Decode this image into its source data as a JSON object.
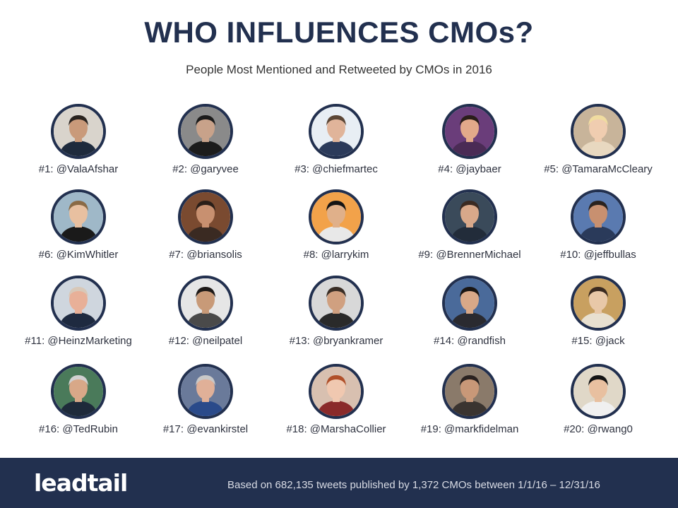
{
  "header": {
    "title": "WHO INFLUENCES CMOs?",
    "subtitle": "People Most Mentioned and Retweeted by CMOs in 2016"
  },
  "influencers": [
    {
      "label": "#1: @ValaAfshar",
      "bg": "#d9d4cc",
      "skin": "#c99a7a",
      "hair": "#2a2420",
      "shirt": "#1e2a3c"
    },
    {
      "label": "#2: @garyvee",
      "bg": "#8a8a8a",
      "skin": "#c8a28a",
      "hair": "#1b1b1b",
      "shirt": "#1c1c1c"
    },
    {
      "label": "#3: @chiefmartec",
      "bg": "#e8eef4",
      "skin": "#e0b49a",
      "hair": "#5b4636",
      "shirt": "#2b3a5a"
    },
    {
      "label": "#4: @jaybaer",
      "bg": "#6a3d7a",
      "skin": "#e2a98a",
      "hair": "#2a1e1a",
      "shirt": "#4a2b55"
    },
    {
      "label": "#5: @TamaraMcCleary",
      "bg": "#c8b49a",
      "skin": "#f0cdb0",
      "hair": "#f0dca0",
      "shirt": "#e8d8c0"
    },
    {
      "label": "#6: @KimWhitler",
      "bg": "#9fb8c8",
      "skin": "#e8c0a0",
      "hair": "#8a6a45",
      "shirt": "#1a1a1a"
    },
    {
      "label": "#7: @briansolis",
      "bg": "#7a4a30",
      "skin": "#c89070",
      "hair": "#2a1e18",
      "shirt": "#3a2a22"
    },
    {
      "label": "#8: @larrykim",
      "bg": "#f2a24a",
      "skin": "#e0b08a",
      "hair": "#141414",
      "shirt": "#e8e8e8"
    },
    {
      "label": "#9: @BrennerMichael",
      "bg": "#3a4a5a",
      "skin": "#d8a88a",
      "hair": "#3a2a22",
      "shirt": "#222c3a"
    },
    {
      "label": "#10: @jeffbullas",
      "bg": "#5a7ab0",
      "skin": "#c89070",
      "hair": "#2a221e",
      "shirt": "#2a3a5a"
    },
    {
      "label": "#11: @HeinzMarketing",
      "bg": "#cfd6de",
      "skin": "#e8b098",
      "hair": "#d8c8b8",
      "shirt": "#1e2a40"
    },
    {
      "label": "#12: @neilpatel",
      "bg": "#e6e6e6",
      "skin": "#c89a78",
      "hair": "#1e1a18",
      "shirt": "#4a4a4a"
    },
    {
      "label": "#13: @bryankramer",
      "bg": "#d8d8d8",
      "skin": "#d0a080",
      "hair": "#3a2e26",
      "shirt": "#2a2a2a"
    },
    {
      "label": "#14: @randfish",
      "bg": "#4a6a9a",
      "skin": "#d8a888",
      "hair": "#1a1614",
      "shirt": "#2a2a30"
    },
    {
      "label": "#15: @jack",
      "bg": "#c8a060",
      "skin": "#e8c8a8",
      "hair": "#3a2a20",
      "shirt": "#e8e0d0"
    },
    {
      "label": "#16: @TedRubin",
      "bg": "#4a7a5a",
      "skin": "#d8a888",
      "hair": "#d0d0d0",
      "shirt": "#1e2a3a"
    },
    {
      "label": "#17: @evankirstel",
      "bg": "#6a7a9a",
      "skin": "#e0b098",
      "hair": "#c8c8c8",
      "shirt": "#2a4a8a"
    },
    {
      "label": "#18: @MarshaCollier",
      "bg": "#d8c0b0",
      "skin": "#f0c8b0",
      "hair": "#b0502a",
      "shirt": "#8a2a2a"
    },
    {
      "label": "#19: @markfidelman",
      "bg": "#8a7a6a",
      "skin": "#c89878",
      "hair": "#2a2220",
      "shirt": "#3a3430"
    },
    {
      "label": "#20: @rwang0",
      "bg": "#e0d8c8",
      "skin": "#e8c0a0",
      "hair": "#141414",
      "shirt": "#f0f0f0"
    }
  ],
  "footer": {
    "logo_lead": "lead",
    "logo_tail": "tail",
    "note": "Based on 682,135 tweets published by 1,372 CMOs between 1/1/16 – 12/31/16",
    "background": "#22304f"
  }
}
